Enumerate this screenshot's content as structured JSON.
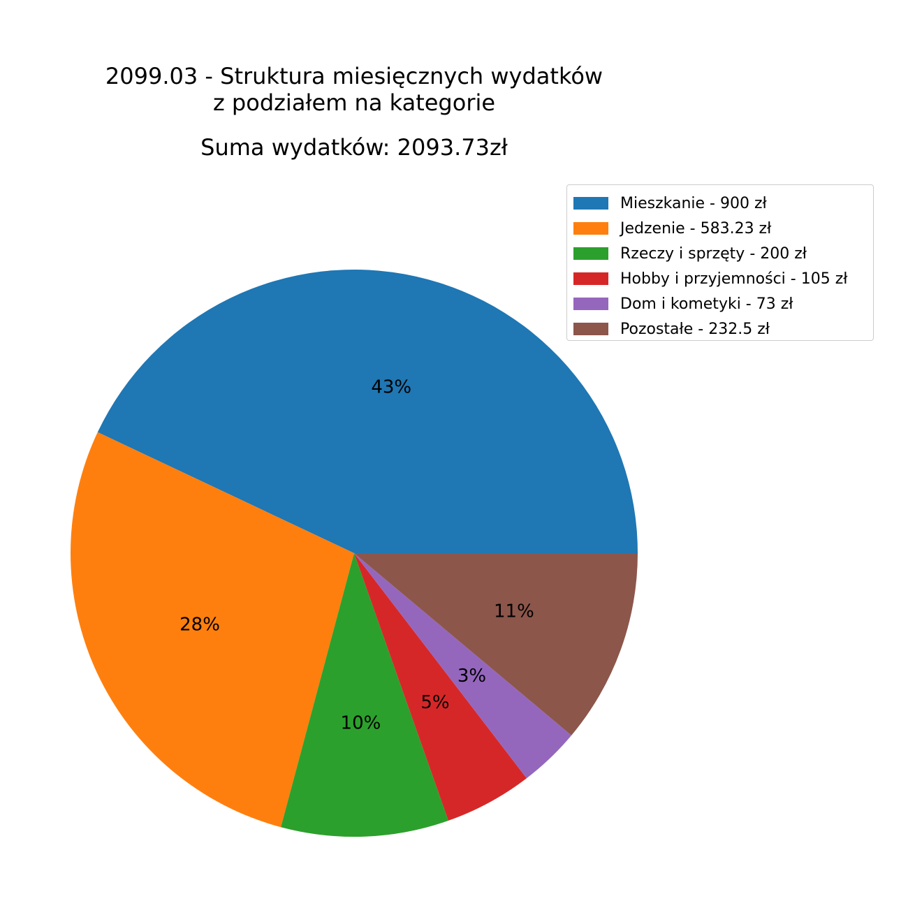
{
  "title": {
    "line1": "2099.03 - Struktura miesięcznych wydatków",
    "line2": "z podziałem na kategorie",
    "sum": "Suma wydatków: 2093.73zł"
  },
  "chart_data": {
    "type": "pie",
    "title": "2099.03 - Struktura miesięcznych wydatków z podziałem na kategorie",
    "subtitle": "Suma wydatków: 2093.73zł",
    "start_angle_deg": 0,
    "direction": "counterclockwise",
    "legend_position": "top-right",
    "slices": [
      {
        "label": "Mieszkanie - 900 zł",
        "value": 900,
        "pct_label": "43%",
        "color": "#1f77b4"
      },
      {
        "label": "Jedzenie - 583.23 zł",
        "value": 583.23,
        "pct_label": "28%",
        "color": "#ff7f0e"
      },
      {
        "label": "Rzeczy i sprzęty - 200 zł",
        "value": 200,
        "pct_label": "10%",
        "color": "#2ca02c"
      },
      {
        "label": "Hobby i przyjemności - 105 zł",
        "value": 105,
        "pct_label": "5%",
        "color": "#d62728"
      },
      {
        "label": "Dom i kometyki - 73 zł",
        "value": 73,
        "pct_label": "3%",
        "color": "#9467bd"
      },
      {
        "label": "Pozostałe - 232.5 zł",
        "value": 232.5,
        "pct_label": "11%",
        "color": "#8c564b"
      }
    ]
  }
}
